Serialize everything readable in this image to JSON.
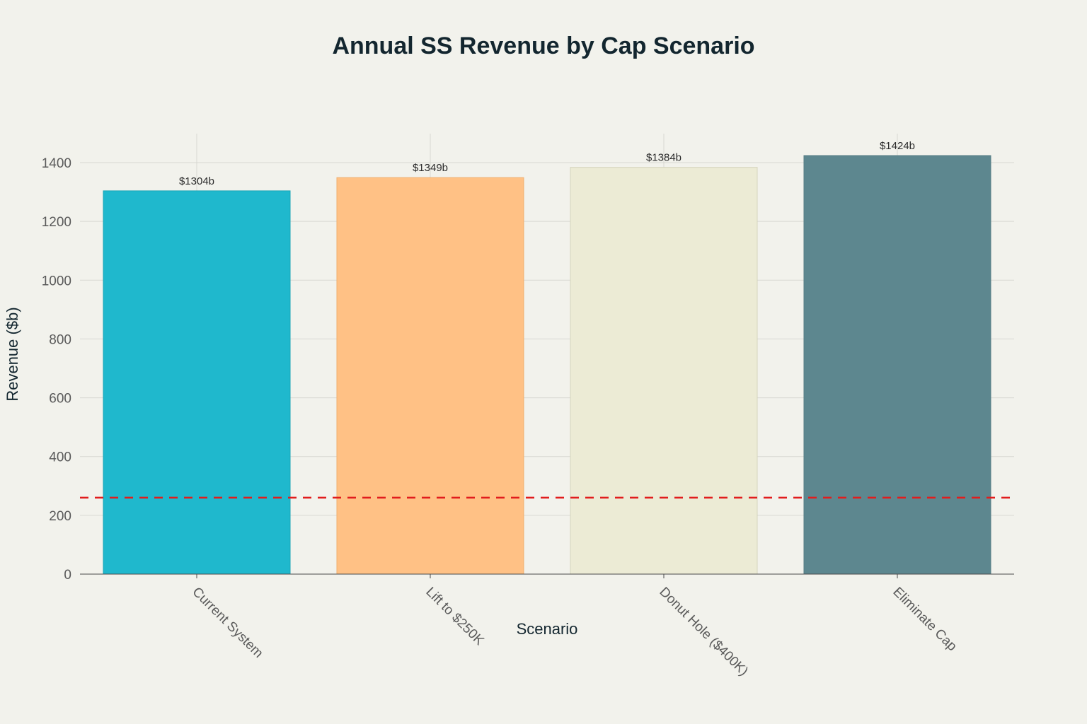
{
  "chart_data": {
    "type": "bar",
    "title": "Annual SS Revenue by Cap Scenario",
    "xlabel": "Scenario",
    "ylabel": "Revenue ($b)",
    "categories": [
      "Current System",
      "Lift to $250K",
      "Donut Hole ($400K)",
      "Eliminate Cap"
    ],
    "values": [
      1304,
      1349,
      1384,
      1424
    ],
    "data_labels": [
      "$1304b",
      "$1349b",
      "$1384b",
      "$1424b"
    ],
    "bar_colors": [
      "#1fb8cd",
      "#ffc185",
      "#eceBd5",
      "#5d878f"
    ],
    "bar_stroke_colors": [
      "#1aa6b8",
      "#f0b070",
      "#d5d4bd",
      "#587f86"
    ],
    "ylim": [
      0,
      1400
    ],
    "yticks": [
      0,
      200,
      400,
      600,
      800,
      1000,
      1200,
      1400
    ],
    "reference_line": {
      "y": 260,
      "color": "#e11d1d",
      "style": "dashed"
    },
    "grid": true,
    "x_tick_rotation": 45
  },
  "colors": {
    "background": "#f2f2ec",
    "grid": "#d8d8d2",
    "axis": "#4a4a4a"
  }
}
